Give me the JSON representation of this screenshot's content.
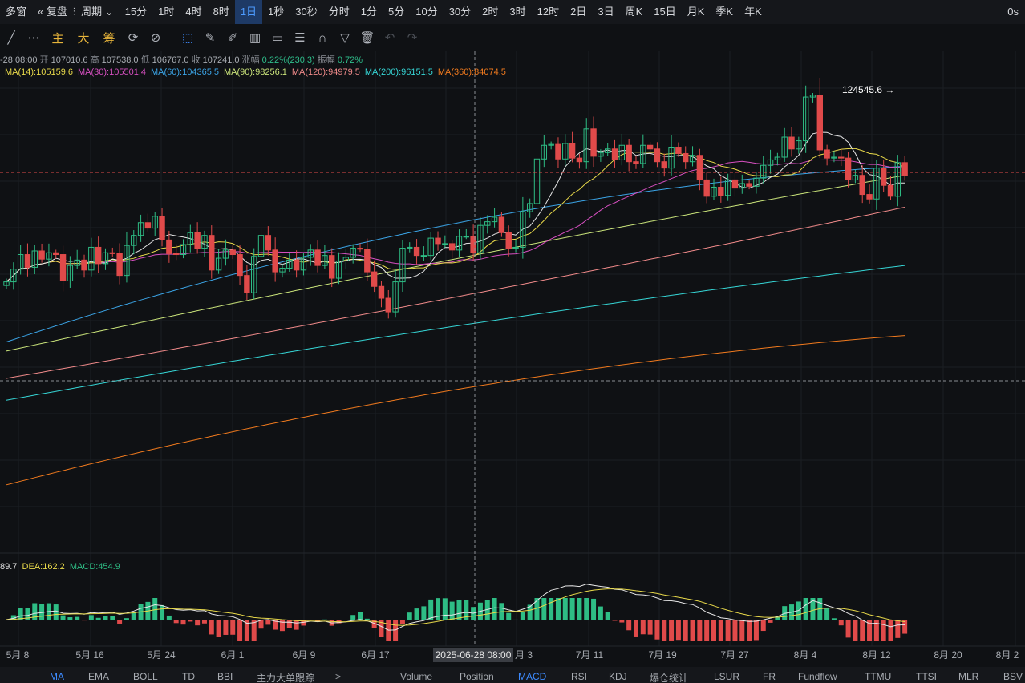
{
  "topbar": {
    "items": [
      "多窗",
      "复盘",
      "周期",
      "15分",
      "1时",
      "4时",
      "8时",
      "1日",
      "1秒",
      "30秒",
      "分时",
      "1分",
      "5分",
      "10分",
      "30分",
      "2时",
      "3时",
      "12时",
      "2日",
      "3日",
      "周K",
      "15日",
      "月K",
      "季K",
      "年K"
    ],
    "active": "1日",
    "right": "0s"
  },
  "toolbar": {
    "labels": [
      "主",
      "大",
      "筹"
    ]
  },
  "info": {
    "date": "-28 08:00",
    "open_label": "开",
    "open": "107010.6",
    "high_label": "高",
    "high": "107538.0",
    "low_label": "低",
    "low": "106767.0",
    "close_label": "收",
    "close": "107241.0",
    "change_label": "涨幅",
    "change": "0.22%(230.3)",
    "amp_label": "振幅",
    "amp": "0.72%"
  },
  "ma_legend": [
    {
      "text": "MA(14):105159.6",
      "color": "#e8d94a"
    },
    {
      "text": "MA(30):105501.4",
      "color": "#d64fc0"
    },
    {
      "text": "MA(60):104365.5",
      "color": "#3ba4e6"
    },
    {
      "text": "MA(90):98256.1",
      "color": "#c9e37a"
    },
    {
      "text": "MA(120):94979.5",
      "color": "#f08a8a"
    },
    {
      "text": "MA(200):96151.5",
      "color": "#36d6d6"
    },
    {
      "text": "MA(360):84074.5",
      "color": "#f07a1e"
    }
  ],
  "max_label": "124545.6 →",
  "macd_legend": {
    "dif": "89.7",
    "dea": "DEA:162.2",
    "macd": "MACD:454.9"
  },
  "crosshair_label": "2025-06-28 08:00",
  "x_labels": [
    "5月 8",
    "5月 16",
    "5月 24",
    "6月 1",
    "6月 9",
    "6月 17",
    "月 3",
    "7月 11",
    "7月 19",
    "7月 27",
    "8月 4",
    "8月 12",
    "8月 20",
    "8月 2"
  ],
  "bottombar": {
    "left": [
      "MA",
      "EMA",
      "BOLL",
      "TD",
      "BBI",
      "主力大单跟踪"
    ],
    "right": [
      "Volume",
      "Position",
      "MACD",
      "RSI",
      "KDJ",
      "爆仓统计",
      "LSUR",
      "FR",
      "Fundflow",
      "TTMU",
      "TTSI",
      "MLR",
      "BSV"
    ],
    "active_left": "MA",
    "active_right": "MACD",
    "arrow": ">"
  },
  "chart_data": {
    "type": "candlestick",
    "interval": "1日",
    "closes": [
      103800,
      105200,
      106800,
      105400,
      107200,
      106300,
      107000,
      106800,
      103900,
      105600,
      106200,
      105100,
      107600,
      105800,
      107000,
      106900,
      104500,
      107800,
      108900,
      110300,
      109700,
      111000,
      108400,
      106900,
      106800,
      107900,
      109200,
      107500,
      108900,
      105100,
      106400,
      107300,
      106800,
      104500,
      102600,
      106600,
      108900,
      107300,
      104900,
      105300,
      106200,
      105100,
      106500,
      107300,
      105600,
      106700,
      104200,
      106100,
      106500,
      107500,
      107400,
      104900,
      103300,
      102000,
      100500,
      103800,
      107500,
      107600,
      106700,
      106700,
      108600,
      108000,
      108000,
      107300,
      108800,
      108800,
      107000,
      110000,
      110400,
      110900,
      109200,
      107500,
      107600,
      111500,
      112400,
      117300,
      118800,
      118900,
      117300,
      119000,
      117400,
      117000,
      120600,
      117600,
      118000,
      118400,
      117200,
      118800,
      117000,
      116800,
      118800,
      118400,
      117000,
      116300,
      118600,
      117900,
      117000,
      117700,
      115000,
      113200,
      114200,
      113300,
      115000,
      114100,
      114600,
      114300,
      115200,
      116600,
      117200,
      117500,
      119700,
      118400,
      119300,
      124100,
      124300,
      118300,
      117400,
      117500,
      117400,
      115000,
      115500,
      113400,
      112900,
      116300,
      114400,
      113200,
      116900,
      115500
    ]
  },
  "colors": {
    "up": "#2ebd85",
    "down": "#e04a4a",
    "background": "#0f1114"
  }
}
